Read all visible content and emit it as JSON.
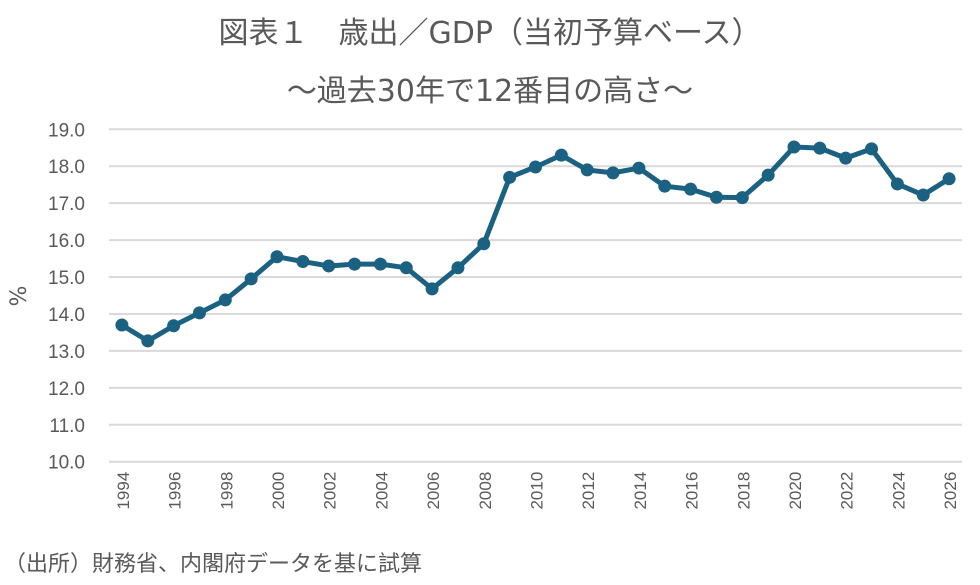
{
  "chart_data": {
    "type": "line",
    "title": "図表１　歳出／GDP（当初予算ベース）",
    "subtitle": "～過去30年で12番目の高さ～",
    "xlabel": "",
    "ylabel": "%",
    "ylim": [
      10.0,
      19.0
    ],
    "yticks": [
      "10.0",
      "11.0",
      "12.0",
      "13.0",
      "14.0",
      "15.0",
      "16.0",
      "17.0",
      "18.0",
      "19.0"
    ],
    "xticks": [
      "1994",
      "1996",
      "1998",
      "2000",
      "2002",
      "2004",
      "2006",
      "2008",
      "2010",
      "2012",
      "2014",
      "2016",
      "2018",
      "2020",
      "2022",
      "2024",
      "2026"
    ],
    "grid": "horizontal",
    "legend": "none",
    "x": [
      1994,
      1995,
      1996,
      1997,
      1998,
      1999,
      2000,
      2001,
      2002,
      2003,
      2004,
      2005,
      2006,
      2007,
      2008,
      2009,
      2010,
      2011,
      2012,
      2013,
      2014,
      2015,
      2016,
      2017,
      2018,
      2019,
      2020,
      2021,
      2022,
      2023,
      2024,
      2025,
      2026
    ],
    "series": [
      {
        "values": [
          13.7,
          13.27,
          13.68,
          14.03,
          14.38,
          14.95,
          15.55,
          15.42,
          15.3,
          15.35,
          15.35,
          15.25,
          14.68,
          15.25,
          15.9,
          17.7,
          17.98,
          18.3,
          17.9,
          17.82,
          17.95,
          17.46,
          17.38,
          17.16,
          17.15,
          17.76,
          18.52,
          18.49,
          18.22,
          18.47,
          17.52,
          17.22,
          17.66
        ],
        "color": "#1b6181"
      }
    ],
    "source": "（出所）財務省、内閣府データを基に試算"
  }
}
